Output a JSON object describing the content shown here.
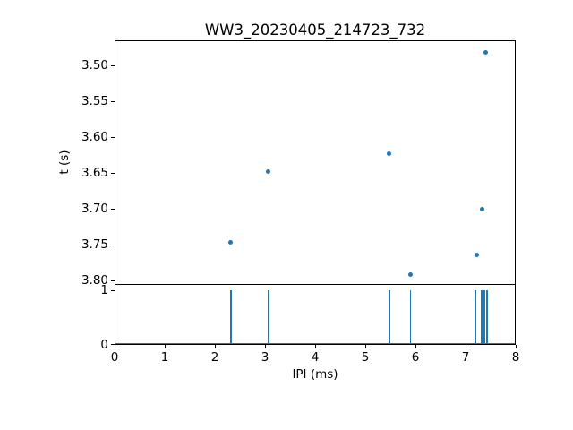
{
  "figure": {
    "title": "WW3_20230405_214723_732",
    "background": "#ffffff",
    "accent": "#1f77b4",
    "axis_color": "#000000"
  },
  "chart_data": [
    {
      "type": "scatter",
      "title": "WW3_20230405_214723_732",
      "xlabel": "",
      "ylabel": "t (s)",
      "xlim": [
        0,
        8
      ],
      "y_axis_inverted": true,
      "y_at_top_edge": 3.465,
      "y_at_bottom_edge": 3.806,
      "y_tick_values": [
        3.5,
        3.55,
        3.6,
        3.65,
        3.7,
        3.75,
        3.8
      ],
      "y_tick_labels": [
        "3.50",
        "3.55",
        "3.60",
        "3.65",
        "3.70",
        "3.75",
        "3.80"
      ],
      "grid": false,
      "marker_color": "#1f77b4",
      "points": [
        {
          "x": 2.3,
          "y": 3.746
        },
        {
          "x": 3.05,
          "y": 3.647
        },
        {
          "x": 5.46,
          "y": 3.622
        },
        {
          "x": 5.88,
          "y": 3.791
        },
        {
          "x": 7.2,
          "y": 3.763
        },
        {
          "x": 7.31,
          "y": 3.699
        },
        {
          "x": 7.38,
          "y": 3.481
        }
      ]
    },
    {
      "type": "bar",
      "title": "",
      "xlabel": "IPI (ms)",
      "ylabel": "",
      "xlim": [
        0,
        8
      ],
      "ylim": [
        0,
        1.1
      ],
      "x_tick_values": [
        0,
        1,
        2,
        3,
        4,
        5,
        6,
        7,
        8
      ],
      "x_tick_labels": [
        "0",
        "1",
        "2",
        "3",
        "4",
        "5",
        "6",
        "7",
        "8"
      ],
      "y_tick_values": [
        0,
        1
      ],
      "y_tick_labels": [
        "0",
        "1"
      ],
      "grid": false,
      "spike_color": "#1f77b4",
      "spike_height": 1,
      "baseline_y": 0,
      "spikes_x": [
        2.3,
        3.05,
        5.46,
        5.88,
        7.18,
        7.3,
        7.36,
        7.41
      ]
    }
  ]
}
